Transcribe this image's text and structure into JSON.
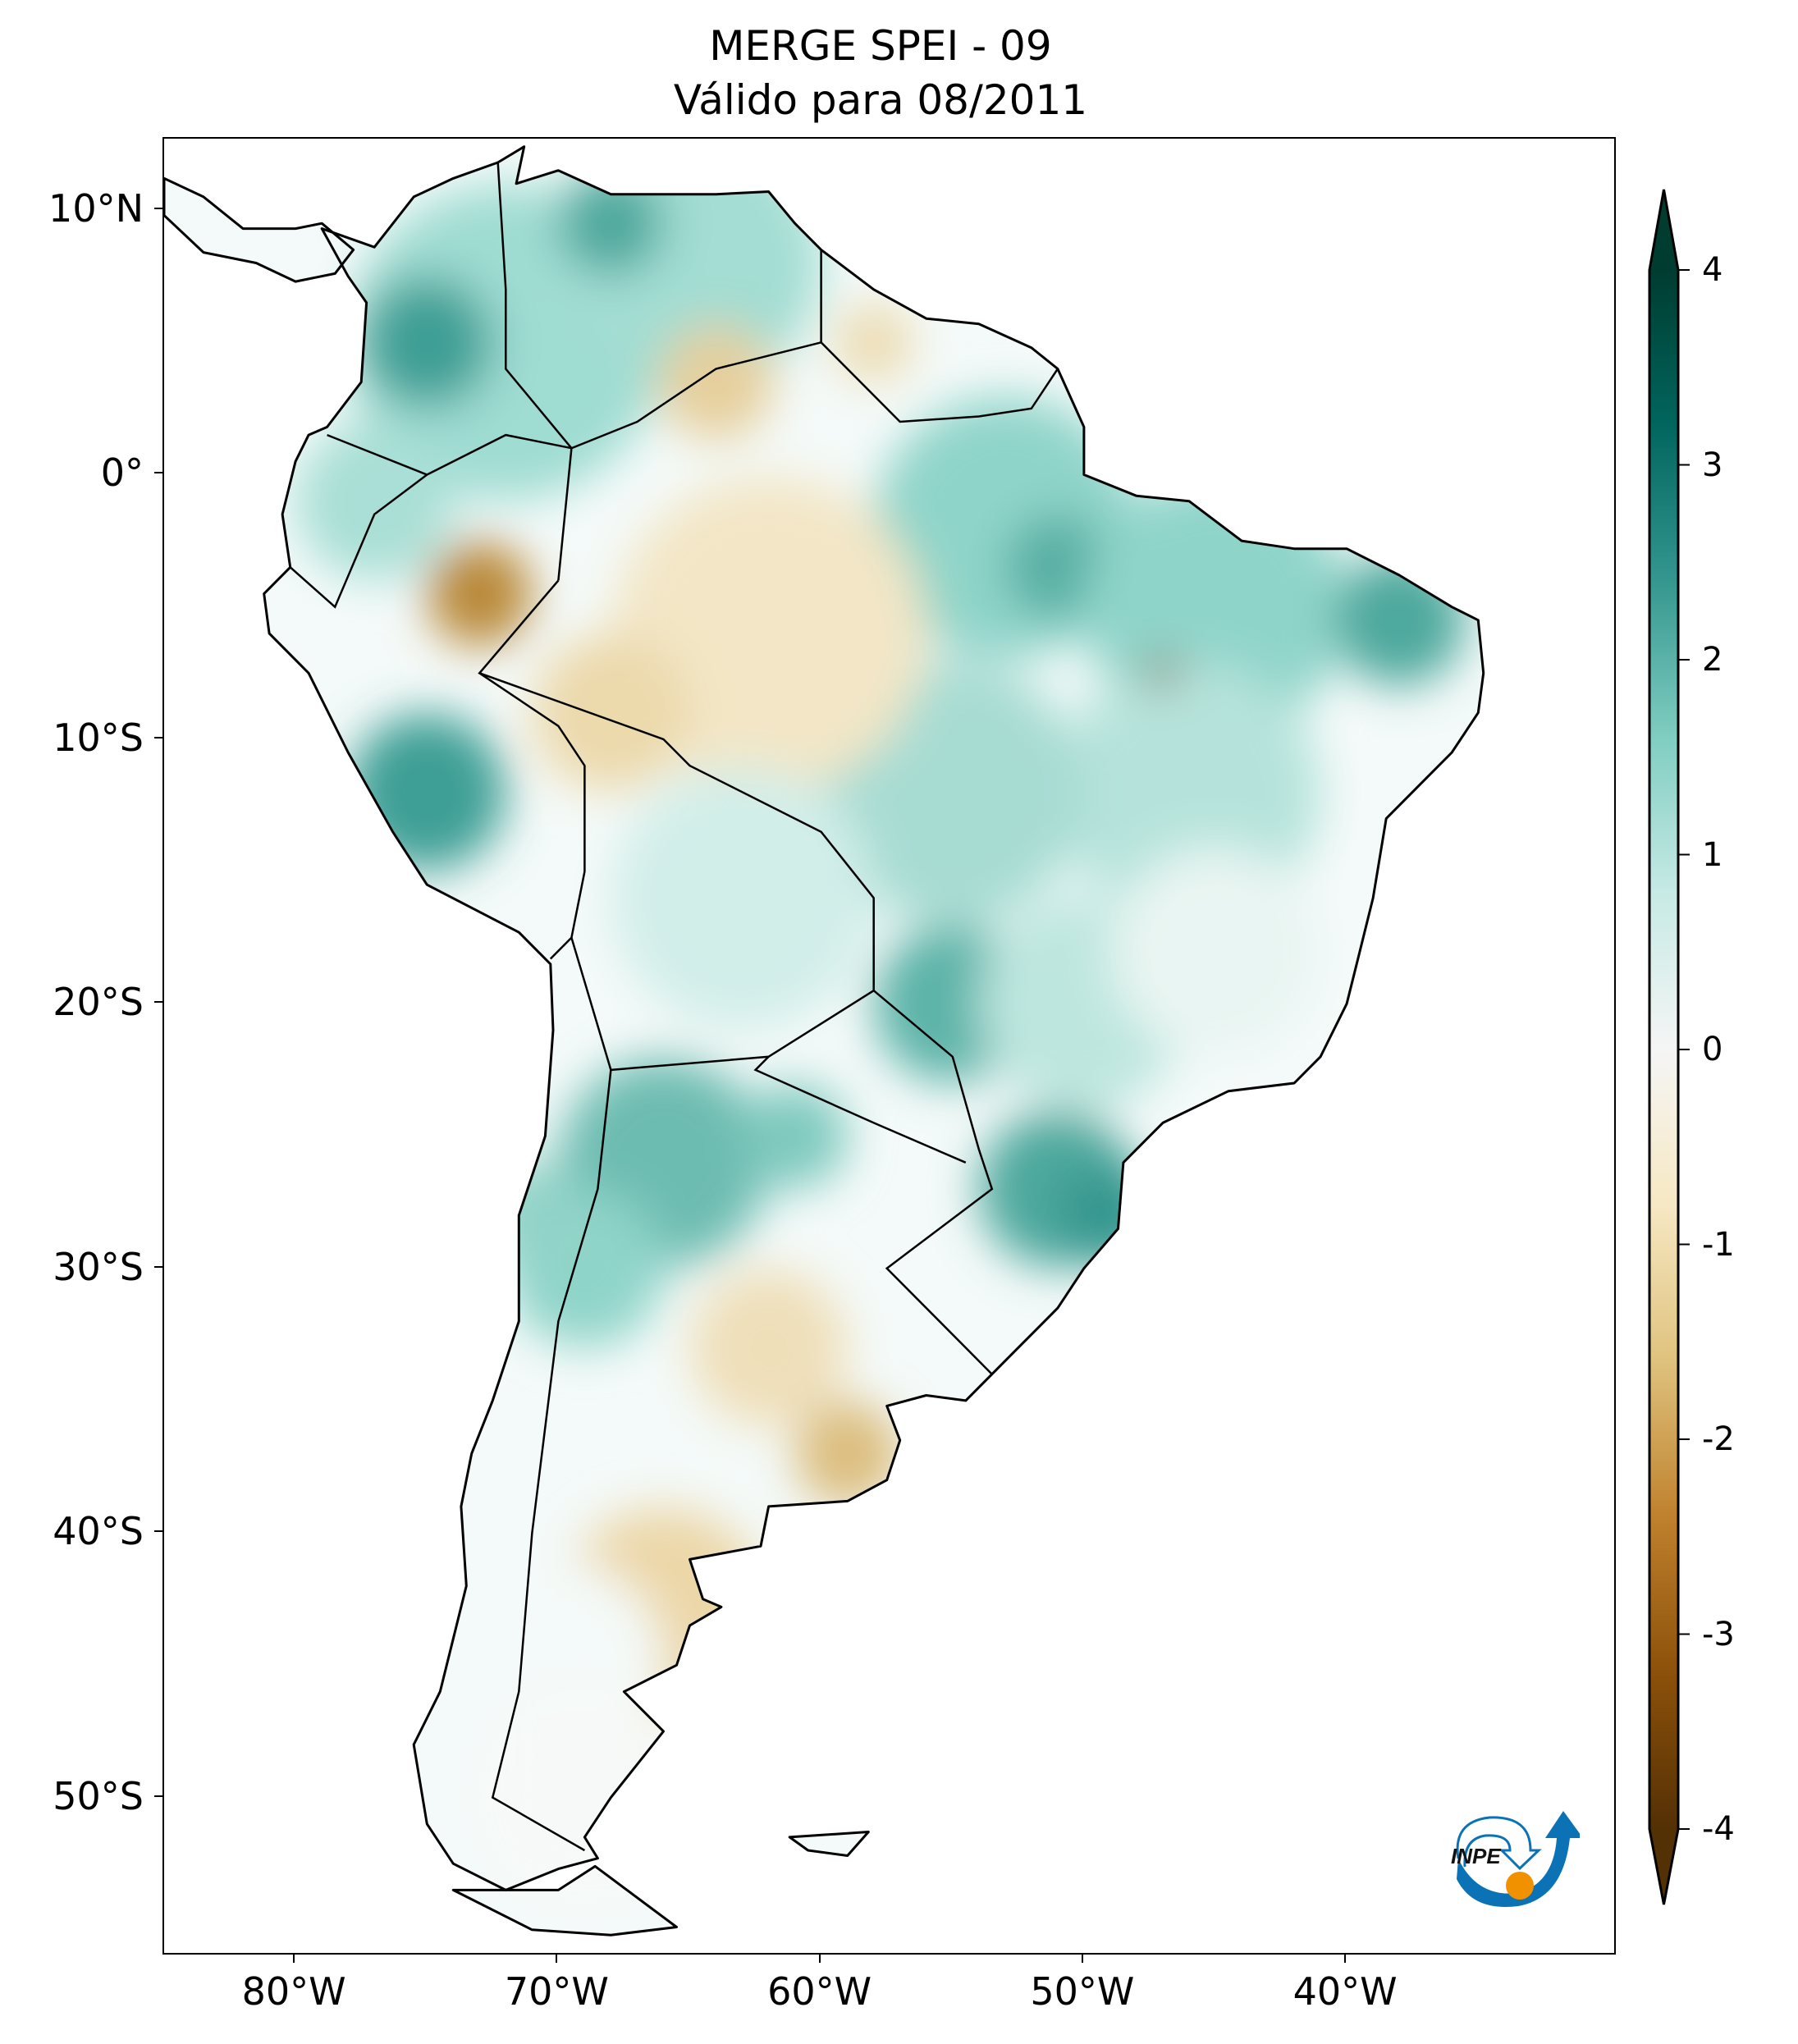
{
  "header": {
    "title_line1": "MERGE   SPEI - 09",
    "title_line2": "Válido para 08/2011"
  },
  "axes": {
    "lat_labels": [
      {
        "value": 10,
        "label": "10°N"
      },
      {
        "value": 0,
        "label": "0°"
      },
      {
        "value": -10,
        "label": "10°S"
      },
      {
        "value": -20,
        "label": "20°S"
      },
      {
        "value": -30,
        "label": "30°S"
      },
      {
        "value": -40,
        "label": "40°S"
      },
      {
        "value": -50,
        "label": "50°S"
      }
    ],
    "lon_labels": [
      {
        "value": -80,
        "label": "80°W"
      },
      {
        "value": -70,
        "label": "70°W"
      },
      {
        "value": -60,
        "label": "60°W"
      },
      {
        "value": -50,
        "label": "50°W"
      },
      {
        "value": -40,
        "label": "40°W"
      }
    ],
    "lon_range": [
      -85,
      -29.7
    ],
    "lat_range": [
      -56,
      12.7
    ]
  },
  "colorbar": {
    "min": -4,
    "max": 4,
    "extend": "both",
    "ticks": [
      {
        "value": 4,
        "label": "4"
      },
      {
        "value": 3,
        "label": "3"
      },
      {
        "value": 2,
        "label": "2"
      },
      {
        "value": 1,
        "label": "1"
      },
      {
        "value": 0,
        "label": "0"
      },
      {
        "value": -1,
        "label": "-1"
      },
      {
        "value": -2,
        "label": "-2"
      },
      {
        "value": -3,
        "label": "-3"
      },
      {
        "value": -4,
        "label": "-4"
      }
    ],
    "colors": [
      "#543005",
      "#8c510a",
      "#bf812d",
      "#dfc27d",
      "#f6e8c3",
      "#f5f5f5",
      "#c7eae5",
      "#80cdc1",
      "#35978f",
      "#01665e",
      "#003c30"
    ]
  },
  "logo": {
    "text": "INPE",
    "blue": "#0a72b5",
    "orange": "#f29100"
  }
}
